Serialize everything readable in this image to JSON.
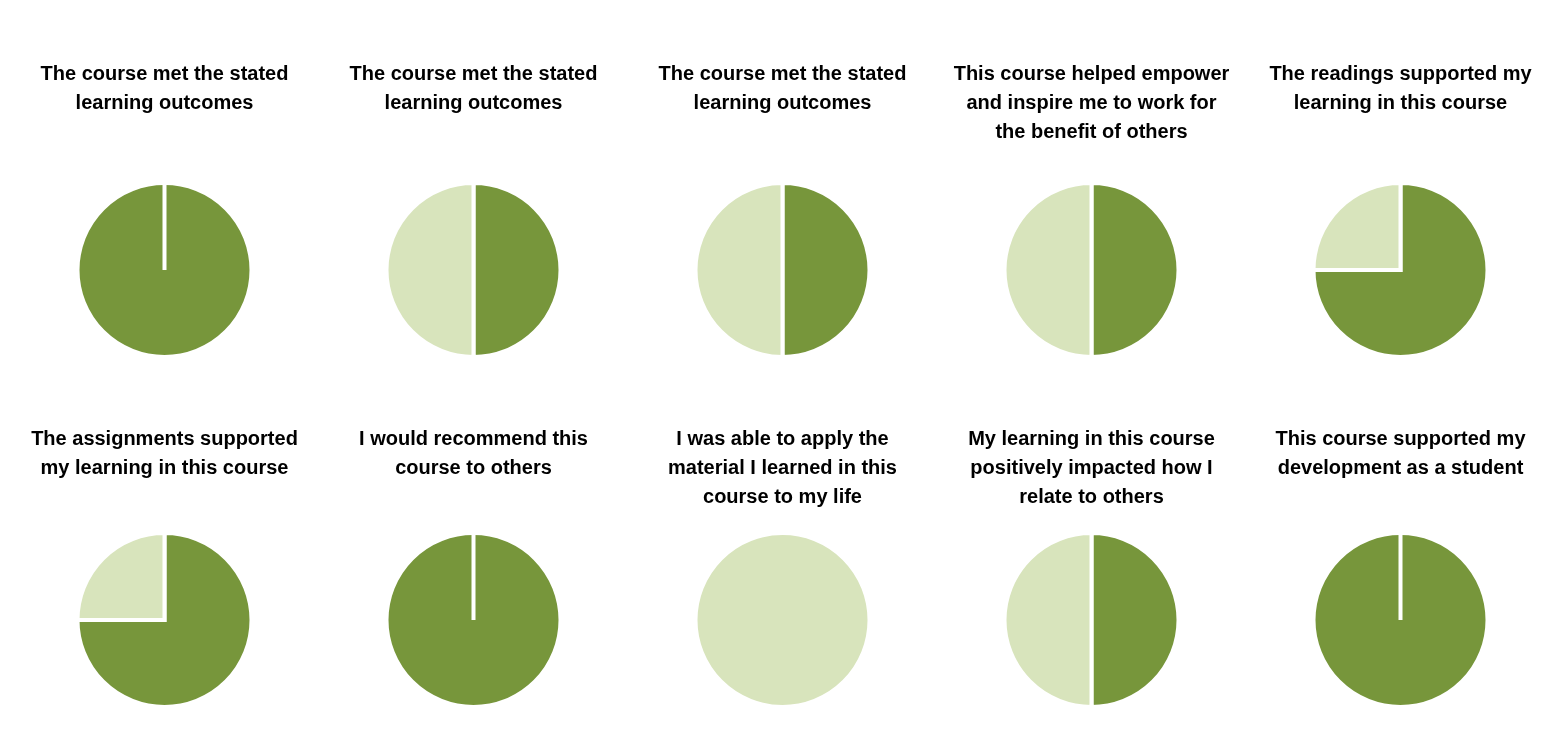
{
  "chart_data": [
    {
      "type": "pie",
      "title": "The course met the stated learning outcomes",
      "categories": [
        null,
        null
      ],
      "values": [
        100,
        0
      ],
      "colors": [
        "#77963b",
        "#d8e4bc"
      ]
    },
    {
      "type": "pie",
      "title": "The course met the stated learning outcomes",
      "categories": [
        null,
        null
      ],
      "values": [
        50,
        50
      ],
      "colors": [
        "#77963b",
        "#d8e4bc"
      ]
    },
    {
      "type": "pie",
      "title": "The course met the stated learning outcomes",
      "categories": [
        null,
        null
      ],
      "values": [
        50,
        50
      ],
      "colors": [
        "#77963b",
        "#d8e4bc"
      ]
    },
    {
      "type": "pie",
      "title": "This course helped empower and inspire me to work for the benefit of others",
      "categories": [
        null,
        null
      ],
      "values": [
        50,
        50
      ],
      "colors": [
        "#77963b",
        "#d8e4bc"
      ]
    },
    {
      "type": "pie",
      "title": "The readings supported my learning in this course",
      "categories": [
        null,
        null
      ],
      "values": [
        75,
        25
      ],
      "colors": [
        "#77963b",
        "#d8e4bc"
      ]
    },
    {
      "type": "pie",
      "title": "The assignments supported my learning in this course",
      "categories": [
        null,
        null
      ],
      "values": [
        75,
        25
      ],
      "colors": [
        "#77963b",
        "#d8e4bc"
      ]
    },
    {
      "type": "pie",
      "title": "I would recommend this course to others",
      "categories": [
        null,
        null
      ],
      "values": [
        100,
        0
      ],
      "colors": [
        "#77963b",
        "#d8e4bc"
      ]
    },
    {
      "type": "pie",
      "title": "I was able to apply the material I learned in this course to my life",
      "categories": [
        null,
        null
      ],
      "values": [
        0,
        100
      ],
      "colors": [
        "#77963b",
        "#d8e4bc"
      ]
    },
    {
      "type": "pie",
      "title": "My learning in this course positively impacted how I relate to others",
      "categories": [
        null,
        null
      ],
      "values": [
        50,
        50
      ],
      "colors": [
        "#77963b",
        "#d8e4bc"
      ]
    },
    {
      "type": "pie",
      "title": "This course supported my development as a student",
      "categories": [
        null,
        null
      ],
      "values": [
        100,
        0
      ],
      "colors": [
        "#77963b",
        "#d8e4bc"
      ]
    }
  ]
}
